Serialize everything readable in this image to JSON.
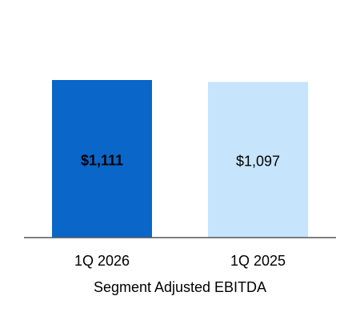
{
  "chart_data": {
    "type": "bar",
    "categories": [
      "1Q 2026",
      "1Q 2025"
    ],
    "values": [
      1111,
      1097
    ],
    "value_labels": [
      "$1,111",
      "$1,097"
    ],
    "colors": [
      "#0a66c8",
      "#c6e4fb"
    ],
    "x_label": "Segment Adjusted EBITDA"
  }
}
